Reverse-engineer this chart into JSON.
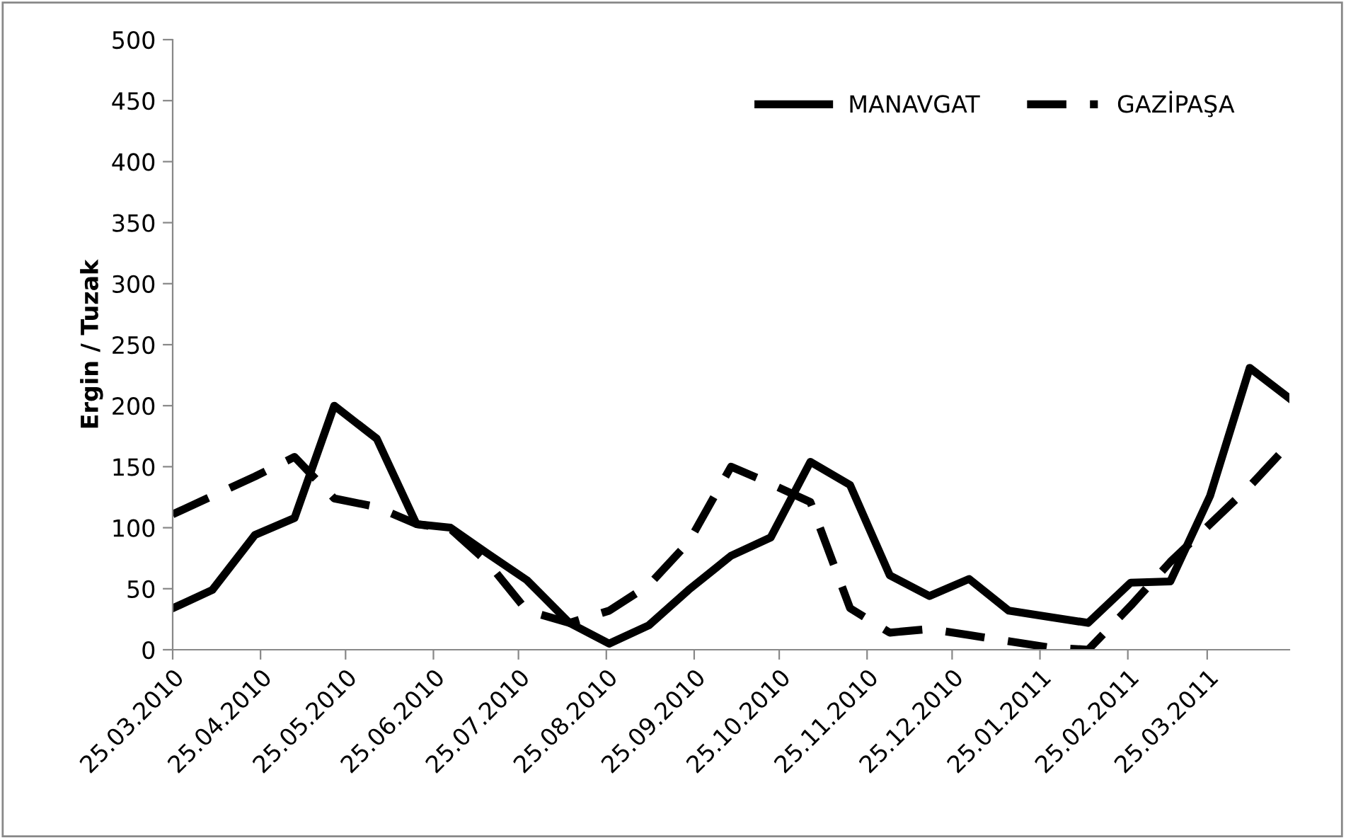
{
  "chart_data": {
    "type": "line",
    "ylabel": "Ergin / Tuzak",
    "x": [
      "2010-03-25",
      "2010-04-08",
      "2010-04-23",
      "2010-05-07",
      "2010-05-21",
      "2010-06-05",
      "2010-06-19",
      "2010-07-01",
      "2010-07-14",
      "2010-07-28",
      "2010-08-12",
      "2010-08-26",
      "2010-09-09",
      "2010-09-23",
      "2010-10-08",
      "2010-10-22",
      "2010-11-05",
      "2010-11-19",
      "2010-12-03",
      "2010-12-17",
      "2010-12-31",
      "2011-01-14",
      "2011-01-28",
      "2011-02-11",
      "2011-02-26",
      "2011-03-12",
      "2011-03-26",
      "2011-04-09",
      "2011-04-23"
    ],
    "series": [
      {
        "name": "MANAVGAT",
        "color": "#000000",
        "line_style": "solid",
        "values": [
          34,
          49,
          94,
          108,
          200,
          173,
          103,
          100,
          79,
          57,
          22,
          5,
          20,
          49,
          77,
          92,
          154,
          135,
          61,
          44,
          58,
          32,
          27,
          22,
          55,
          56,
          126,
          231,
          206
        ]
      },
      {
        "name": "GAZİPAŞA",
        "color": "#000000",
        "line_style": "dashed",
        "values": [
          111,
          126,
          142,
          158,
          124,
          117,
          103,
          99,
          72,
          32,
          22,
          32,
          53,
          88,
          150,
          136,
          121,
          34,
          14,
          17,
          12,
          7,
          2,
          0,
          36,
          72,
          103,
          134,
          169
        ]
      }
    ],
    "xlim": [
      "2010-03-25",
      "2011-04-23"
    ],
    "xticks": [
      {
        "value": "2010-03-25",
        "label": "25.03.2010"
      },
      {
        "value": "2010-04-25",
        "label": "25.04.2010"
      },
      {
        "value": "2010-05-25",
        "label": "25.05.2010"
      },
      {
        "value": "2010-06-25",
        "label": "25.06.2010"
      },
      {
        "value": "2010-07-25",
        "label": "25.07.2010"
      },
      {
        "value": "2010-08-25",
        "label": "25.08.2010"
      },
      {
        "value": "2010-09-25",
        "label": "25.09.2010"
      },
      {
        "value": "2010-10-25",
        "label": "25.10.2010"
      },
      {
        "value": "2010-11-25",
        "label": "25.11.2010"
      },
      {
        "value": "2010-12-25",
        "label": "25.12.2010"
      },
      {
        "value": "2011-01-25",
        "label": "25.01.2011"
      },
      {
        "value": "2011-02-25",
        "label": "25.02.2011"
      },
      {
        "value": "2011-03-25",
        "label": "25.03.2011"
      }
    ],
    "ylim": [
      0,
      500
    ],
    "yticks": [
      0,
      50,
      100,
      150,
      200,
      250,
      300,
      350,
      400,
      450,
      500
    ],
    "grid": false,
    "legend": "top right",
    "marker": "none"
  }
}
